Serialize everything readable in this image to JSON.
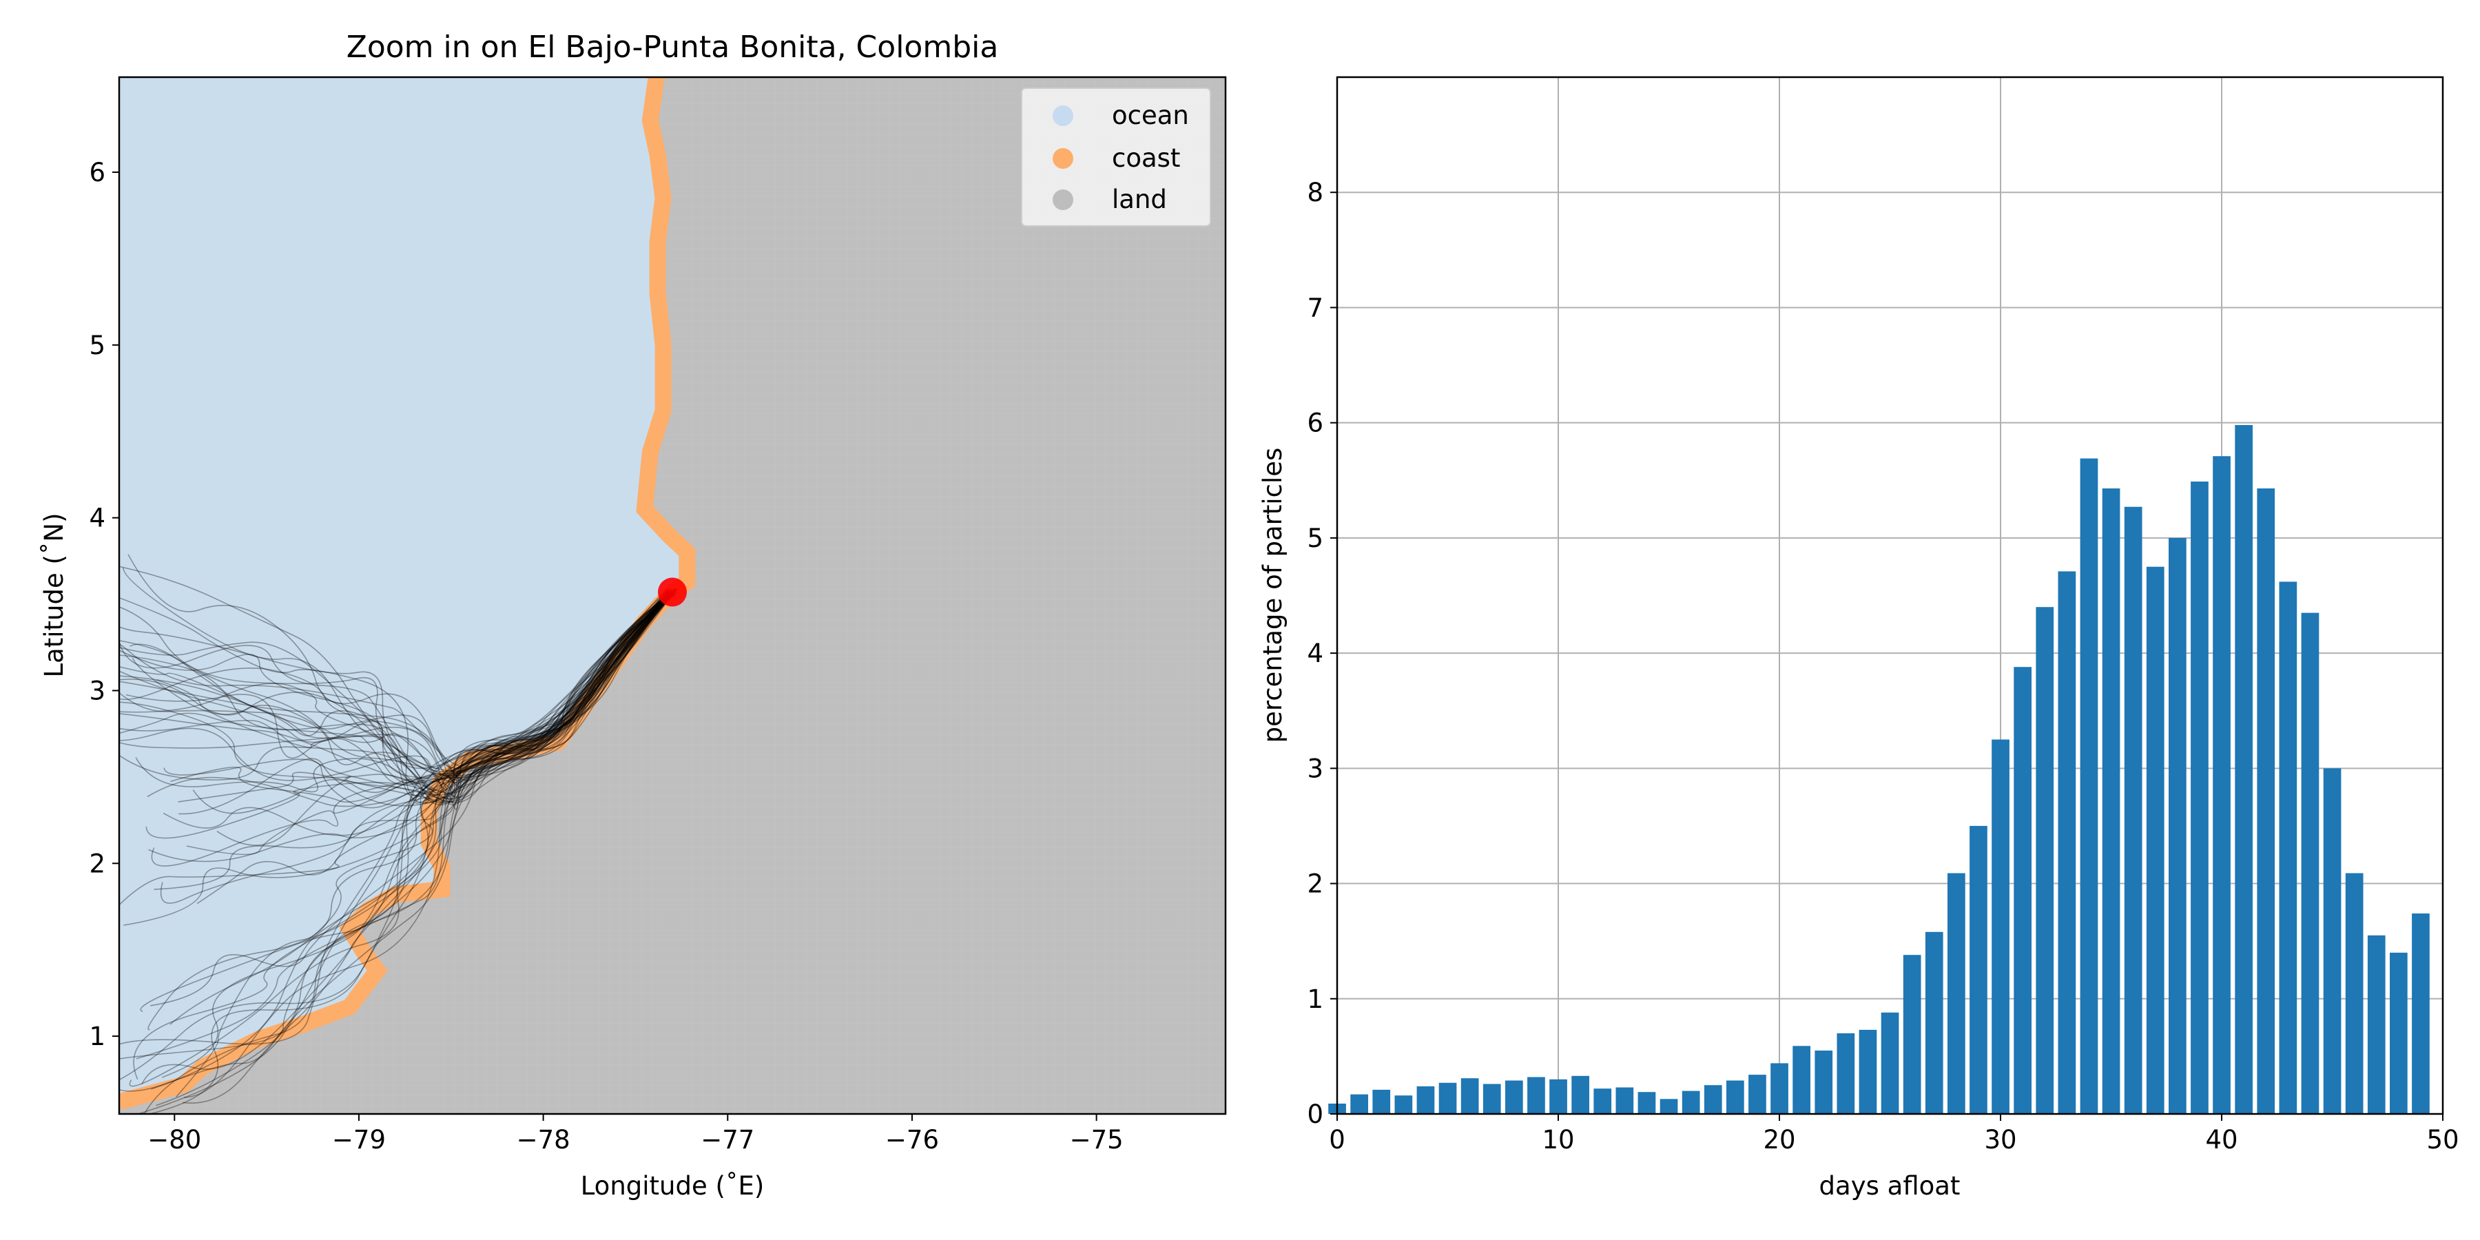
{
  "chart_data": [
    {
      "type": "map",
      "title": "Zoom in on El Bajo-Punta Bonita, Colombia",
      "xlabel": "Longitude (˚E)",
      "ylabel": "Latitude (˚N)",
      "xlim": [
        -80.3,
        -74.3
      ],
      "ylim": [
        0.55,
        6.55
      ],
      "xticks": [
        -80,
        -79,
        -78,
        -77,
        -76,
        -75
      ],
      "xtick_labels": [
        "−80",
        "−79",
        "−78",
        "−77",
        "−76",
        "−75"
      ],
      "yticks": [
        1,
        2,
        3,
        4,
        5,
        6
      ],
      "ytick_labels": [
        "1",
        "2",
        "3",
        "4",
        "5",
        "6"
      ],
      "grid": false,
      "legend_position": "top-right",
      "legend": [
        {
          "label": "ocean",
          "color": "#c6dbef"
        },
        {
          "label": "coast",
          "color": "#fdae6b"
        },
        {
          "label": "land",
          "color": "#bdbdbd"
        }
      ],
      "source_point": {
        "lon": -77.3,
        "lat": 3.57,
        "color": "#ff0000"
      },
      "trajectory_color": "#000000"
    },
    {
      "type": "bar",
      "title": "",
      "xlabel": "days afloat",
      "ylabel": "percentage of particles",
      "xlim": [
        0,
        50
      ],
      "ylim": [
        0,
        9
      ],
      "xticks": [
        0,
        10,
        20,
        30,
        40,
        50
      ],
      "yticks": [
        0,
        1,
        2,
        3,
        4,
        5,
        6,
        7,
        8
      ],
      "grid": true,
      "bar_color": "#1f77b4",
      "x": [
        0,
        1,
        2,
        3,
        4,
        5,
        6,
        7,
        8,
        9,
        10,
        11,
        12,
        13,
        14,
        15,
        16,
        17,
        18,
        19,
        20,
        21,
        22,
        23,
        24,
        25,
        26,
        27,
        28,
        29,
        30,
        31,
        32,
        33,
        34,
        35,
        36,
        37,
        38,
        39,
        40,
        41,
        42,
        43,
        44,
        45,
        46,
        47,
        48,
        49
      ],
      "values": [
        0.09,
        0.17,
        0.21,
        0.16,
        0.24,
        0.27,
        0.31,
        0.26,
        0.29,
        0.32,
        0.3,
        0.33,
        0.22,
        0.23,
        0.19,
        0.13,
        0.2,
        0.25,
        0.29,
        0.34,
        0.44,
        0.59,
        0.55,
        0.7,
        0.73,
        0.88,
        1.38,
        1.58,
        2.09,
        2.5,
        3.25,
        3.88,
        4.4,
        4.71,
        5.69,
        5.43,
        5.27,
        4.75,
        5.0,
        5.49,
        5.71,
        5.98,
        5.43,
        4.62,
        4.35,
        3.0,
        2.09,
        1.55,
        1.4,
        1.74
      ]
    }
  ]
}
